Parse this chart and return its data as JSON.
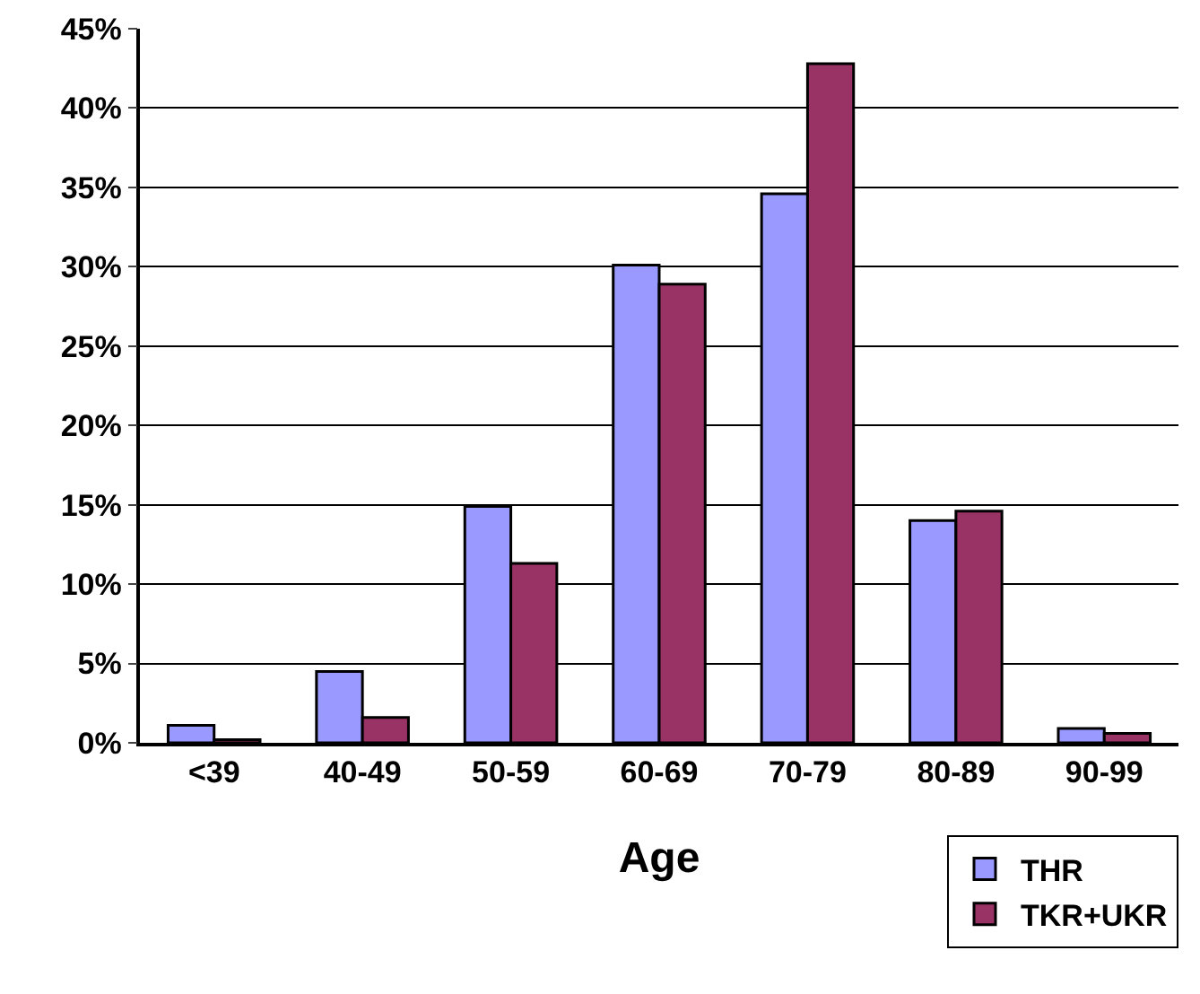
{
  "chart_data": {
    "type": "bar",
    "xlabel": "Age",
    "categories": [
      "<39",
      "40-49",
      "50-59",
      "60-69",
      "70-79",
      "80-89",
      "90-99"
    ],
    "series": [
      {
        "name": "THR",
        "color": "#9999ff",
        "values": [
          1.1,
          4.5,
          14.9,
          30.1,
          34.6,
          14.0,
          0.9
        ]
      },
      {
        "name": "TKR+UKR",
        "color": "#993366",
        "values": [
          0.2,
          1.6,
          11.3,
          28.9,
          42.8,
          14.6,
          0.6
        ]
      }
    ],
    "ylim": [
      0,
      45
    ],
    "yticks": [
      {
        "value": 0,
        "label": "0%"
      },
      {
        "value": 5,
        "label": "5%"
      },
      {
        "value": 10,
        "label": "10%"
      },
      {
        "value": 15,
        "label": "15%"
      },
      {
        "value": 20,
        "label": "20%"
      },
      {
        "value": 25,
        "label": "25%"
      },
      {
        "value": 30,
        "label": "30%"
      },
      {
        "value": 35,
        "label": "35%"
      },
      {
        "value": 40,
        "label": "40%"
      },
      {
        "value": 45,
        "label": "45%"
      }
    ],
    "grid": "y",
    "legend": "bottom right"
  }
}
